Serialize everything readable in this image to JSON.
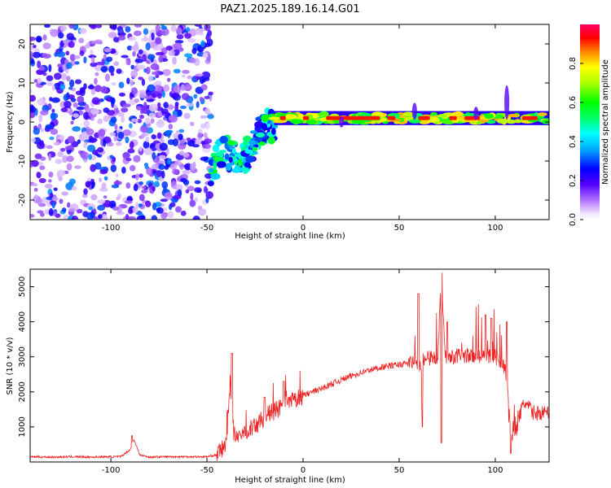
{
  "figure": {
    "title": "PAZ1.2025.189.16.14.G01"
  },
  "chart_data": [
    {
      "type": "heatmap",
      "title": "PAZ1.2025.189.16.14.G01",
      "xlabel": "Height of straight line (km)",
      "ylabel": "Frequency (Hz)",
      "xlim": [
        -142,
        128
      ],
      "ylim": [
        -25,
        25
      ],
      "x_ticks": [
        -100,
        -50,
        0,
        50,
        100
      ],
      "y_ticks": [
        -20,
        -10,
        0,
        10,
        20
      ],
      "grid": false,
      "colorbar": {
        "label": "Normalized spectral amplitude",
        "range": [
          0,
          1
        ],
        "ticks": [
          0.0,
          0.2,
          0.4,
          0.6,
          0.8
        ],
        "colormap": "rainbow (violet-blue-cyan-green-yellow-red-magenta)"
      },
      "regions": [
        {
          "x_range": [
            -142,
            -48
          ],
          "y_range": [
            -25,
            25
          ],
          "pattern": "scattered noise",
          "amplitude_range": [
            0.05,
            0.35
          ]
        },
        {
          "x_range": [
            -48,
            -15
          ],
          "y_range": [
            -15,
            2
          ],
          "pattern": "descending patchy band",
          "amplitude_range": [
            0.2,
            0.6
          ]
        },
        {
          "x_range": [
            -15,
            128
          ],
          "y_range": [
            0,
            2
          ],
          "pattern": "narrow band near 1 Hz",
          "amplitude_range": [
            0.5,
            1.0
          ]
        }
      ]
    },
    {
      "type": "line",
      "xlabel": "Height of straight line (km)",
      "ylabel": "SNR (10 * v/v)",
      "xlim": [
        -142,
        128
      ],
      "ylim": [
        0,
        5500
      ],
      "x_ticks": [
        -100,
        -50,
        0,
        50,
        100
      ],
      "y_ticks": [
        1000,
        2000,
        3000,
        4000,
        5000
      ],
      "grid": false,
      "line_color": "#ee2222",
      "x": [
        -142,
        -130,
        -120,
        -110,
        -100,
        -95,
        -90,
        -88,
        -85,
        -80,
        -70,
        -60,
        -50,
        -45,
        -40,
        -38,
        -36,
        -34,
        -30,
        -25,
        -20,
        -10,
        0,
        10,
        20,
        30,
        40,
        50,
        55,
        58,
        60,
        62,
        65,
        70,
        72,
        74,
        78,
        82,
        90,
        95,
        100,
        105,
        108,
        110,
        115,
        120,
        128
      ],
      "values": [
        150,
        140,
        150,
        140,
        150,
        150,
        350,
        650,
        200,
        140,
        150,
        150,
        150,
        200,
        500,
        2300,
        800,
        600,
        900,
        1000,
        1300,
        1600,
        1900,
        2100,
        2350,
        2550,
        2700,
        2780,
        2820,
        2850,
        2700,
        2900,
        2950,
        3000,
        5300,
        3000,
        3000,
        3050,
        3000,
        3050,
        3000,
        2700,
        800,
        900,
        1700,
        1400,
        1400
      ],
      "peaks": [
        {
          "x": -89,
          "y": 750
        },
        {
          "x": -37,
          "y": 3100
        },
        {
          "x": -20,
          "y": 1850
        },
        {
          "x": -10,
          "y": 2300
        },
        {
          "x": 60,
          "y": 4800
        },
        {
          "x": 62,
          "y": 4400
        },
        {
          "x": 72,
          "y": 5400
        },
        {
          "x": 75,
          "y": 4000
        },
        {
          "x": 95,
          "y": 4200
        },
        {
          "x": 98,
          "y": 4100
        },
        {
          "x": 106,
          "y": 4000
        }
      ],
      "dips": [
        {
          "x": 62,
          "y": 1000
        },
        {
          "x": 72,
          "y": 550
        },
        {
          "x": 108,
          "y": 250
        }
      ]
    }
  ]
}
